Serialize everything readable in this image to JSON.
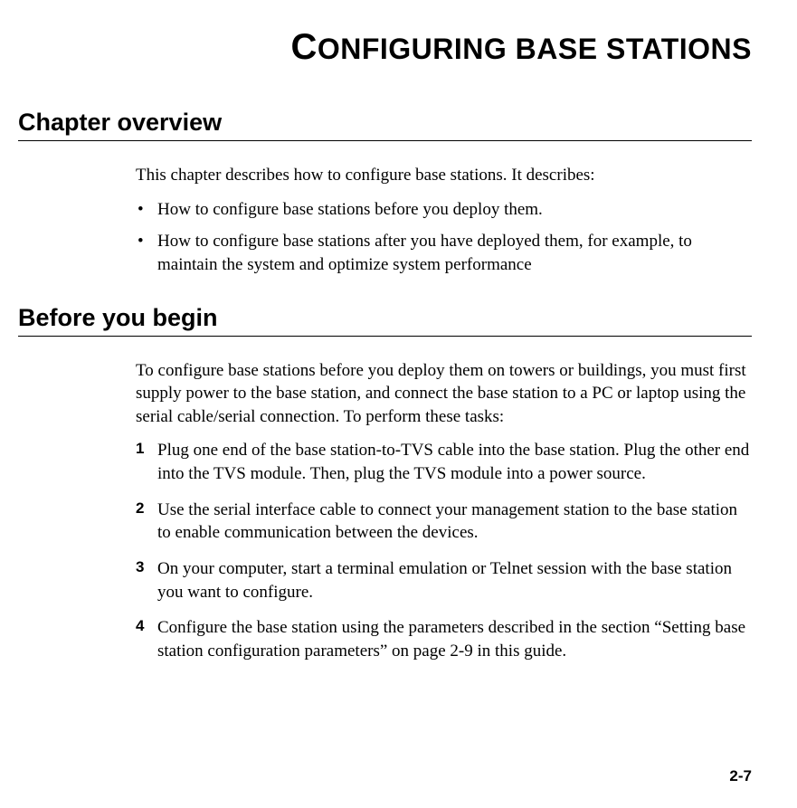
{
  "page": {
    "title_first": "C",
    "title_rest": "ONFIGURING BASE STATIONS",
    "page_number": "2-7",
    "background_color": "#ffffff",
    "text_color": "#000000"
  },
  "sections": {
    "overview": {
      "heading": "Chapter overview",
      "intro": "This chapter describes how to configure base stations. It describes:",
      "bullets": [
        "How to configure base stations before you deploy them.",
        "How to configure base stations after you have deployed them, for example, to maintain the system and optimize system performance"
      ]
    },
    "before": {
      "heading": "Before you begin",
      "intro": "To configure base stations before you deploy them on towers or buildings, you must first supply power to the base station, and connect the base station to a PC or laptop using the serial cable/serial connection. To perform these tasks:",
      "steps": [
        "Plug one end of the base station-to-TVS cable into the base station. Plug the other end into the TVS module. Then, plug the TVS module into a power source.",
        "Use the serial interface cable to connect your management station to the base station to enable communication between the devices.",
        "On your computer, start a terminal emulation or Telnet session with the base station you want to configure.",
        "Configure the base station using the parameters described in the section “Setting base station configuration parameters” on page 2-9 in this guide."
      ]
    }
  }
}
